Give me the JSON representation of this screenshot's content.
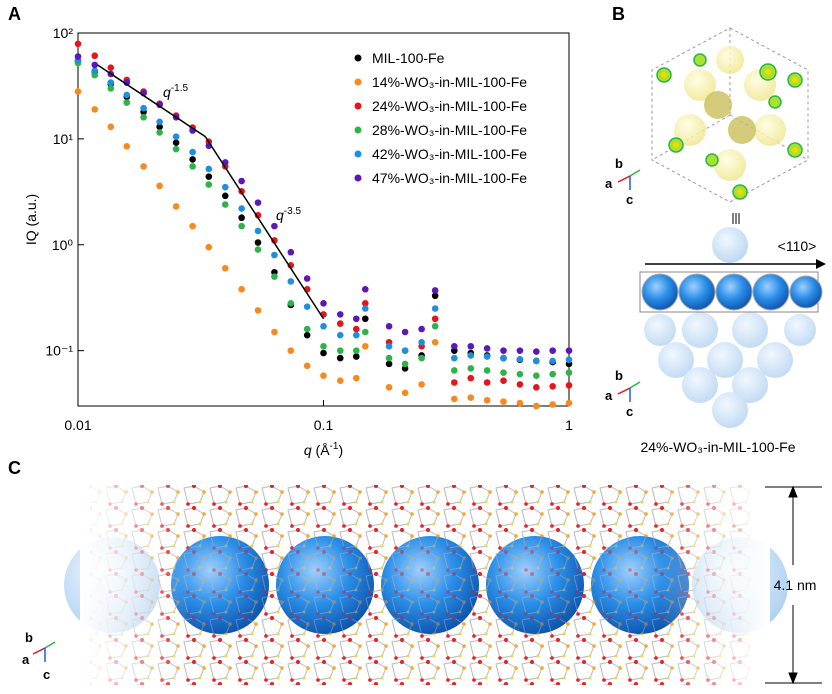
{
  "panel_labels": [
    "A",
    "B",
    "C"
  ],
  "chart_data": {
    "type": "scatter",
    "x_label": {
      "base": "q",
      "rest": " (Å",
      "sup": "-1",
      "tail": ")"
    },
    "y_label": "IQ (a.u.)",
    "log_x": true,
    "log_y": true,
    "xlim": [
      0.01,
      1
    ],
    "ylim": [
      0.03,
      100
    ],
    "xticks": [
      0.01,
      0.1,
      1
    ],
    "yticks": [
      {
        "value": 0.1,
        "label": "10⁻¹"
      },
      {
        "value": 1,
        "label": "10⁰"
      },
      {
        "value": 10,
        "label": "10¹"
      },
      {
        "value": 100,
        "label": "10²"
      }
    ],
    "legend": "upper right",
    "x": [
      0.01,
      0.0117,
      0.0136,
      0.0158,
      0.0185,
      0.0215,
      0.0251,
      0.0293,
      0.0341,
      0.0398,
      0.0464,
      0.0541,
      0.0631,
      0.0736,
      0.0858,
      0.1,
      0.117,
      0.136,
      0.148,
      0.185,
      0.215,
      0.251,
      0.285,
      0.341,
      0.398,
      0.464,
      0.541,
      0.631,
      0.736,
      0.858,
      1
    ],
    "series": [
      {
        "name": "MIL-100-Fe",
        "color": "#000000",
        "values": [
          55,
          43,
          33,
          25,
          18,
          13,
          9.2,
          6.4,
          4.4,
          2.9,
          1.8,
          1.05,
          0.55,
          0.27,
          0.14,
          0.095,
          0.085,
          0.088,
          0.2,
          0.075,
          0.068,
          0.09,
          0.33,
          0.1,
          0.095,
          0.09,
          0.085,
          0.082,
          0.08,
          0.078,
          0.075
        ]
      },
      {
        "name": "14%-WO₃-in-MIL-100-Fe",
        "color": "#f7891e",
        "values": [
          28,
          19,
          13,
          8.5,
          5.5,
          3.6,
          2.3,
          1.5,
          0.95,
          0.6,
          0.38,
          0.24,
          0.15,
          0.1,
          0.072,
          0.058,
          0.052,
          0.055,
          0.11,
          0.045,
          0.04,
          0.048,
          0.12,
          0.035,
          0.036,
          0.034,
          0.033,
          0.032,
          0.03,
          0.031,
          0.032
        ]
      },
      {
        "name": "24%-WO₃-in-MIL-100-Fe",
        "color": "#e8141b",
        "values": [
          79,
          61,
          47,
          36,
          28,
          21.5,
          16.6,
          12.8,
          9.4,
          5.5,
          3.2,
          1.9,
          1.1,
          0.64,
          0.38,
          0.22,
          0.18,
          0.16,
          0.28,
          0.12,
          0.1,
          0.11,
          0.2,
          0.05,
          0.055,
          0.05,
          0.052,
          0.048,
          0.045,
          0.046,
          0.047
        ]
      },
      {
        "name": "28%-WO₃-in-MIL-100-Fe",
        "color": "#2db34a",
        "values": [
          52,
          40,
          30,
          22,
          16,
          11.5,
          8,
          5.5,
          3.7,
          2.4,
          1.5,
          0.9,
          0.5,
          0.28,
          0.16,
          0.11,
          0.1,
          0.1,
          0.15,
          0.085,
          0.075,
          0.085,
          0.17,
          0.065,
          0.068,
          0.065,
          0.062,
          0.06,
          0.058,
          0.06,
          0.062
        ]
      },
      {
        "name": "42%-WO₃-in-MIL-100-Fe",
        "color": "#1e8fe0",
        "values": [
          55,
          44,
          34,
          26,
          19.5,
          14.5,
          10.5,
          7.5,
          5.2,
          3.5,
          2.2,
          1.35,
          0.8,
          0.45,
          0.26,
          0.17,
          0.14,
          0.14,
          0.25,
          0.11,
          0.1,
          0.12,
          0.25,
          0.085,
          0.09,
          0.088,
          0.085,
          0.083,
          0.08,
          0.08,
          0.082
        ]
      },
      {
        "name": "47%-WO₃-in-MIL-100-Fe",
        "color": "#5b17b8",
        "values": [
          60,
          50,
          41,
          34,
          27,
          21,
          16,
          12,
          8.6,
          6,
          4,
          2.5,
          1.5,
          0.85,
          0.48,
          0.28,
          0.22,
          0.2,
          0.38,
          0.17,
          0.15,
          0.16,
          0.37,
          0.11,
          0.11,
          0.105,
          0.1,
          0.1,
          0.098,
          0.1,
          0.1
        ]
      }
    ],
    "fits": [
      {
        "base": "q",
        "sup": "-1.5",
        "x": [
          0.012,
          0.033
        ],
        "values": [
          50,
          10.5
        ]
      },
      {
        "base": "q",
        "sup": "-3.5",
        "x": [
          0.033,
          0.1
        ],
        "values": [
          10.5,
          0.2
        ]
      }
    ]
  },
  "panel_b": {
    "axes_top": [
      "b",
      "a",
      "c"
    ],
    "direction": "<110>",
    "axes_bottom": [
      "b",
      "a",
      "c"
    ],
    "caption": "24%-WO₃-in-MIL-100-Fe"
  },
  "panel_c": {
    "axes": [
      "b",
      "a",
      "c"
    ],
    "dimension": "4.1 nm"
  }
}
